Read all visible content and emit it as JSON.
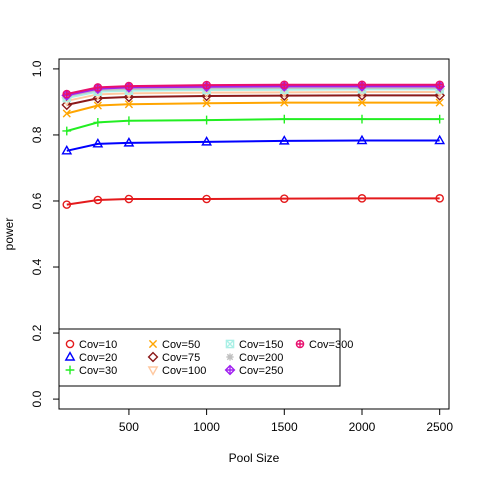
{
  "chart_data": {
    "type": "line",
    "title": "",
    "xlabel": "Pool Size",
    "ylabel": "power",
    "xlim": [
      50,
      2560
    ],
    "ylim": [
      -0.03,
      1.03
    ],
    "x": [
      100,
      300,
      500,
      1000,
      1500,
      2000,
      2500
    ],
    "x_ticks": [
      500,
      1000,
      1500,
      2000,
      2500
    ],
    "x_tick_labels": [
      "500",
      "1000",
      "1500",
      "2000",
      "2500"
    ],
    "y_ticks": [
      0.0,
      0.2,
      0.4,
      0.6,
      0.8,
      1.0
    ],
    "y_tick_labels": [
      "0.0",
      "0.2",
      "0.4",
      "0.6",
      "0.8",
      "1.0"
    ],
    "grid": false,
    "legend_position": "bottom-left",
    "series": [
      {
        "name": "Cov=10",
        "color": "#e41a1c",
        "marker": "circle",
        "values": [
          0.589,
          0.603,
          0.606,
          0.606,
          0.607,
          0.608,
          0.608
        ]
      },
      {
        "name": "Cov=20",
        "color": "#0000ff",
        "marker": "triangle",
        "values": [
          0.752,
          0.773,
          0.776,
          0.779,
          0.782,
          0.783,
          0.783
        ]
      },
      {
        "name": "Cov=30",
        "color": "#22ee22",
        "marker": "plus",
        "values": [
          0.812,
          0.838,
          0.843,
          0.845,
          0.848,
          0.848,
          0.848
        ]
      },
      {
        "name": "Cov=50",
        "color": "#ffa500",
        "marker": "x",
        "values": [
          0.865,
          0.889,
          0.893,
          0.896,
          0.898,
          0.898,
          0.898
        ]
      },
      {
        "name": "Cov=75",
        "color": "#8b1a1a",
        "marker": "diamond",
        "values": [
          0.891,
          0.911,
          0.915,
          0.918,
          0.919,
          0.92,
          0.92
        ]
      },
      {
        "name": "Cov=100",
        "color": "#ffc8a0",
        "marker": "down-triangle",
        "values": [
          0.903,
          0.923,
          0.926,
          0.928,
          0.929,
          0.93,
          0.93
        ]
      },
      {
        "name": "Cov=150",
        "color": "#aaf0e6",
        "marker": "box-x",
        "values": [
          0.912,
          0.931,
          0.934,
          0.936,
          0.937,
          0.938,
          0.938
        ]
      },
      {
        "name": "Cov=200",
        "color": "#c0c0c0",
        "marker": "star",
        "values": [
          0.917,
          0.936,
          0.939,
          0.941,
          0.942,
          0.942,
          0.942
        ]
      },
      {
        "name": "Cov=250",
        "color": "#a020f0",
        "marker": "diamond-plus",
        "values": [
          0.92,
          0.94,
          0.944,
          0.946,
          0.947,
          0.947,
          0.947
        ]
      },
      {
        "name": "Cov=300",
        "color": "#e8106e",
        "marker": "circle-plus",
        "values": [
          0.924,
          0.944,
          0.948,
          0.951,
          0.952,
          0.952,
          0.952
        ]
      }
    ]
  }
}
